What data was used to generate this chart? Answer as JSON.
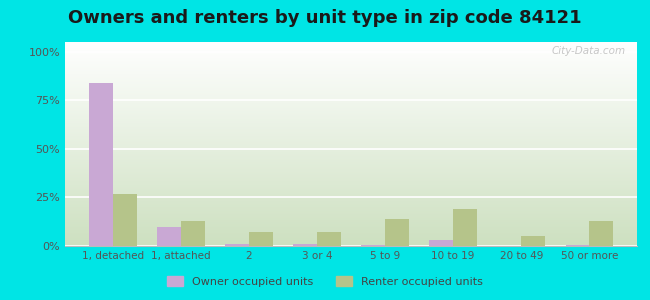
{
  "title": "Owners and renters by unit type in zip code 84121",
  "categories": [
    "1, detached",
    "1, attached",
    "2",
    "3 or 4",
    "5 to 9",
    "10 to 19",
    "20 to 49",
    "50 or more"
  ],
  "owner_values": [
    84,
    10,
    1.0,
    1.0,
    0.3,
    3,
    0.2,
    0.3
  ],
  "renter_values": [
    27,
    13,
    7,
    7,
    14,
    19,
    5,
    13
  ],
  "owner_color": "#c9a8d4",
  "renter_color": "#b5c48a",
  "owner_label": "Owner occupied units",
  "renter_label": "Renter occupied units",
  "bg_color": "#00e5e5",
  "yticks": [
    0,
    25,
    50,
    75,
    100
  ],
  "ytick_labels": [
    "0%",
    "25%",
    "50%",
    "75%",
    "100%"
  ],
  "ylim": [
    0,
    105
  ],
  "title_fontsize": 13,
  "bar_width": 0.35,
  "watermark": "City-Data.com"
}
